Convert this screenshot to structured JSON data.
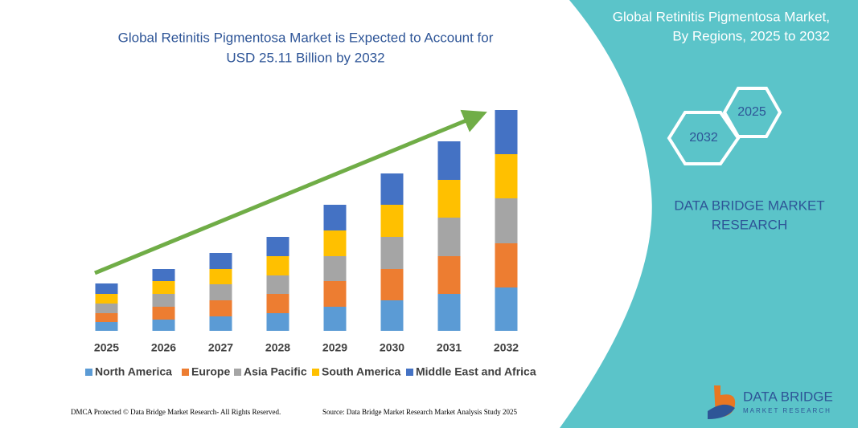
{
  "chart_data": {
    "type": "stacked_bar",
    "title": [
      "Global Retinitis Pigmentosa Market is Expected to Account for",
      "USD 25.11 Billion by 2032"
    ],
    "categories": [
      "2025",
      "2026",
      "2027",
      "2028",
      "2029",
      "2030",
      "2031",
      "2032"
    ],
    "series": [
      {
        "name": "North America",
        "color": "#5b9bd5",
        "values": [
          11,
          14,
          18,
          22,
          30,
          38,
          46,
          54
        ]
      },
      {
        "name": "Europe",
        "color": "#ed7d31",
        "values": [
          11,
          16,
          20,
          24,
          32,
          39,
          47,
          55
        ]
      },
      {
        "name": "Asia Pacific",
        "color": "#a5a5a5",
        "values": [
          12,
          16,
          20,
          23,
          31,
          40,
          48,
          56
        ]
      },
      {
        "name": "South America",
        "color": "#ffc000",
        "values": [
          12,
          16,
          19,
          24,
          32,
          40,
          47,
          55
        ]
      },
      {
        "name": "Middle East and Africa",
        "color": "#4472c4",
        "values": [
          13,
          15,
          20,
          24,
          32,
          39,
          48,
          55
        ]
      }
    ],
    "ylim": [
      0,
      290
    ]
  },
  "sidebar": {
    "title": [
      "Global Retinitis Pigmentosa Market,",
      "By Regions, 2025 to 2032"
    ],
    "hexagons": [
      "2025",
      "2032"
    ],
    "brand": [
      "DATA BRIDGE MARKET",
      "RESEARCH"
    ]
  },
  "logo": {
    "name": "DATA BRIDGE",
    "tagline": "MARKET RESEARCH"
  },
  "footer": {
    "left": "DMCA Protected © Data Bridge Market Research- All Rights Reserved.",
    "right": "Source: Data Bridge Market Research Market Analysis Study 2025"
  }
}
